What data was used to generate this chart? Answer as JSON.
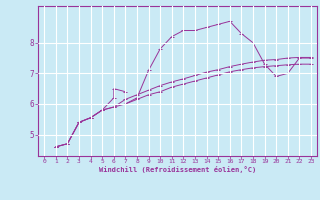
{
  "title": "",
  "xlabel": "Windchill (Refroidissement éolien,°C)",
  "ylabel": "",
  "bg_color": "#caeaf5",
  "line_color": "#993399",
  "grid_color": "#ffffff",
  "xlim": [
    -0.5,
    23.5
  ],
  "ylim": [
    4.3,
    9.2
  ],
  "yticks": [
    5,
    6,
    7,
    8
  ],
  "yticklabels": [
    "5",
    "6",
    "7",
    "8"
  ],
  "xticks": [
    0,
    1,
    2,
    3,
    4,
    5,
    6,
    7,
    8,
    9,
    10,
    11,
    12,
    13,
    14,
    15,
    16,
    17,
    18,
    19,
    20,
    21,
    22,
    23
  ],
  "series1": [
    [
      1,
      4.6
    ],
    [
      2,
      4.7
    ],
    [
      3,
      5.4
    ],
    [
      4,
      5.55
    ],
    [
      5,
      5.8
    ],
    [
      6,
      6.2
    ],
    [
      6,
      6.5
    ],
    [
      7,
      6.4
    ],
    [
      7,
      6.0
    ],
    [
      8,
      6.2
    ],
    [
      9,
      7.1
    ],
    [
      10,
      7.8
    ],
    [
      11,
      8.2
    ],
    [
      12,
      8.4
    ],
    [
      13,
      8.4
    ],
    [
      14,
      8.5
    ],
    [
      15,
      8.6
    ],
    [
      16,
      8.7
    ],
    [
      17,
      8.3
    ],
    [
      18,
      8.0
    ],
    [
      19,
      7.3
    ],
    [
      20,
      6.9
    ],
    [
      21,
      7.0
    ],
    [
      22,
      7.5
    ],
    [
      23,
      7.5
    ]
  ],
  "series2": [
    [
      1,
      4.6
    ],
    [
      2,
      4.7
    ],
    [
      3,
      5.4
    ],
    [
      4,
      5.55
    ],
    [
      5,
      5.8
    ],
    [
      6,
      5.9
    ],
    [
      7,
      6.15
    ],
    [
      8,
      6.3
    ],
    [
      9,
      6.45
    ],
    [
      10,
      6.6
    ],
    [
      11,
      6.72
    ],
    [
      12,
      6.82
    ],
    [
      13,
      6.93
    ],
    [
      14,
      7.04
    ],
    [
      15,
      7.12
    ],
    [
      16,
      7.22
    ],
    [
      17,
      7.3
    ],
    [
      18,
      7.37
    ],
    [
      19,
      7.43
    ],
    [
      20,
      7.45
    ],
    [
      21,
      7.5
    ],
    [
      22,
      7.52
    ],
    [
      23,
      7.52
    ]
  ],
  "series3": [
    [
      1,
      4.6
    ],
    [
      2,
      4.7
    ],
    [
      3,
      5.4
    ],
    [
      4,
      5.55
    ],
    [
      5,
      5.8
    ],
    [
      6,
      5.9
    ],
    [
      7,
      6.0
    ],
    [
      8,
      6.15
    ],
    [
      9,
      6.3
    ],
    [
      10,
      6.4
    ],
    [
      11,
      6.55
    ],
    [
      12,
      6.65
    ],
    [
      13,
      6.75
    ],
    [
      14,
      6.85
    ],
    [
      15,
      6.95
    ],
    [
      16,
      7.05
    ],
    [
      17,
      7.12
    ],
    [
      18,
      7.18
    ],
    [
      19,
      7.22
    ],
    [
      20,
      7.25
    ],
    [
      21,
      7.28
    ],
    [
      22,
      7.3
    ],
    [
      23,
      7.3
    ]
  ]
}
